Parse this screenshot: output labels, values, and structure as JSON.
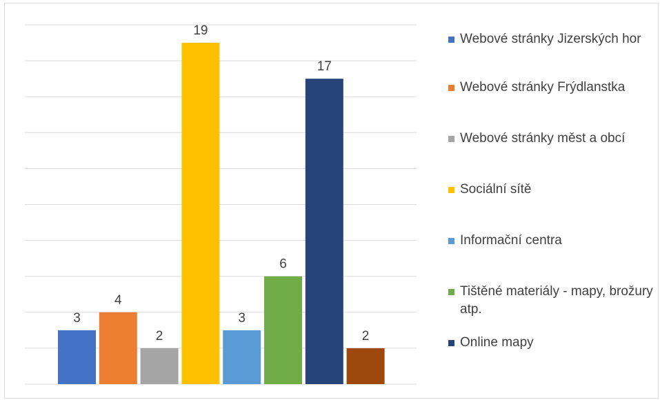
{
  "chart_data": {
    "type": "bar",
    "categories": [
      "Webové stránky Jizerských hor",
      "Webové stránky Frýdlanstka",
      "Webové stránky měst a obcí",
      "Sociální sítě",
      "Informační centra",
      "Tištěné materiály - mapy, brožury atp.",
      "Online mapy",
      ""
    ],
    "values": [
      3,
      4,
      2,
      19,
      3,
      6,
      17,
      2
    ],
    "data_labels": [
      "3",
      "4",
      "2",
      "19",
      "3",
      "6",
      "17",
      "2"
    ],
    "colors": [
      "#4472c4",
      "#ed7d31",
      "#a5a5a5",
      "#ffc000",
      "#5b9bd5",
      "#70ad47",
      "#264478",
      "#9e480e"
    ],
    "ylim": [
      0,
      20
    ],
    "y_grid_step": 2,
    "grid": true,
    "legend_position": "right"
  }
}
